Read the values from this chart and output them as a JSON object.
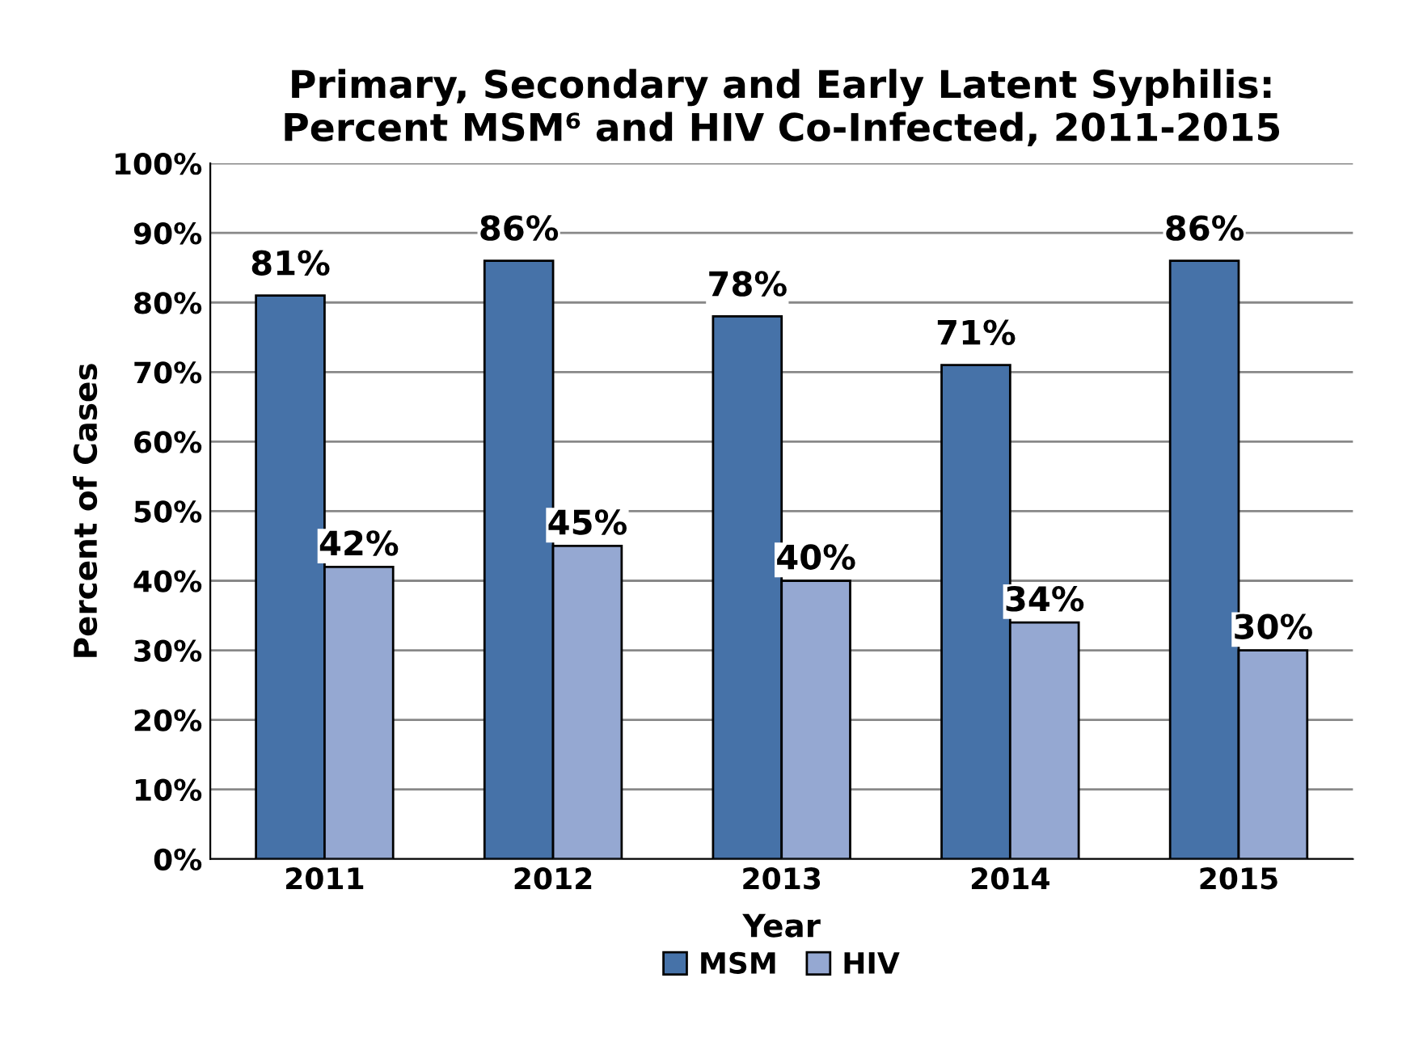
{
  "chart_data": {
    "type": "bar",
    "title": "Primary, Secondary and Early Latent Syphilis:\nPercent MSM⁶ and HIV Co-Infected, 2011-2015",
    "xlabel": "Year",
    "ylabel": "Percent of Cases",
    "categories": [
      "2011",
      "2012",
      "2013",
      "2014",
      "2015"
    ],
    "series": [
      {
        "name": "MSM",
        "color": "#4672a8",
        "values": [
          81,
          86,
          78,
          71,
          86
        ],
        "value_labels": [
          "81%",
          "86%",
          "78%",
          "71%",
          "86%"
        ]
      },
      {
        "name": "HIV",
        "color": "#95a8d2",
        "values": [
          42,
          45,
          40,
          34,
          30
        ],
        "value_labels": [
          "42%",
          "45%",
          "40%",
          "34%",
          "30%"
        ]
      }
    ],
    "ylim": [
      0,
      100
    ],
    "yticks": [
      {
        "value": 0,
        "label": "0%"
      },
      {
        "value": 10,
        "label": "10%"
      },
      {
        "value": 20,
        "label": "20%"
      },
      {
        "value": 30,
        "label": "30%"
      },
      {
        "value": 40,
        "label": "40%"
      },
      {
        "value": 50,
        "label": "50%"
      },
      {
        "value": 60,
        "label": "60%"
      },
      {
        "value": 70,
        "label": "70%"
      },
      {
        "value": 80,
        "label": "80%"
      },
      {
        "value": 90,
        "label": "90%"
      },
      {
        "value": 100,
        "label": "100%"
      }
    ],
    "grid": "y",
    "legend": "bottom"
  }
}
